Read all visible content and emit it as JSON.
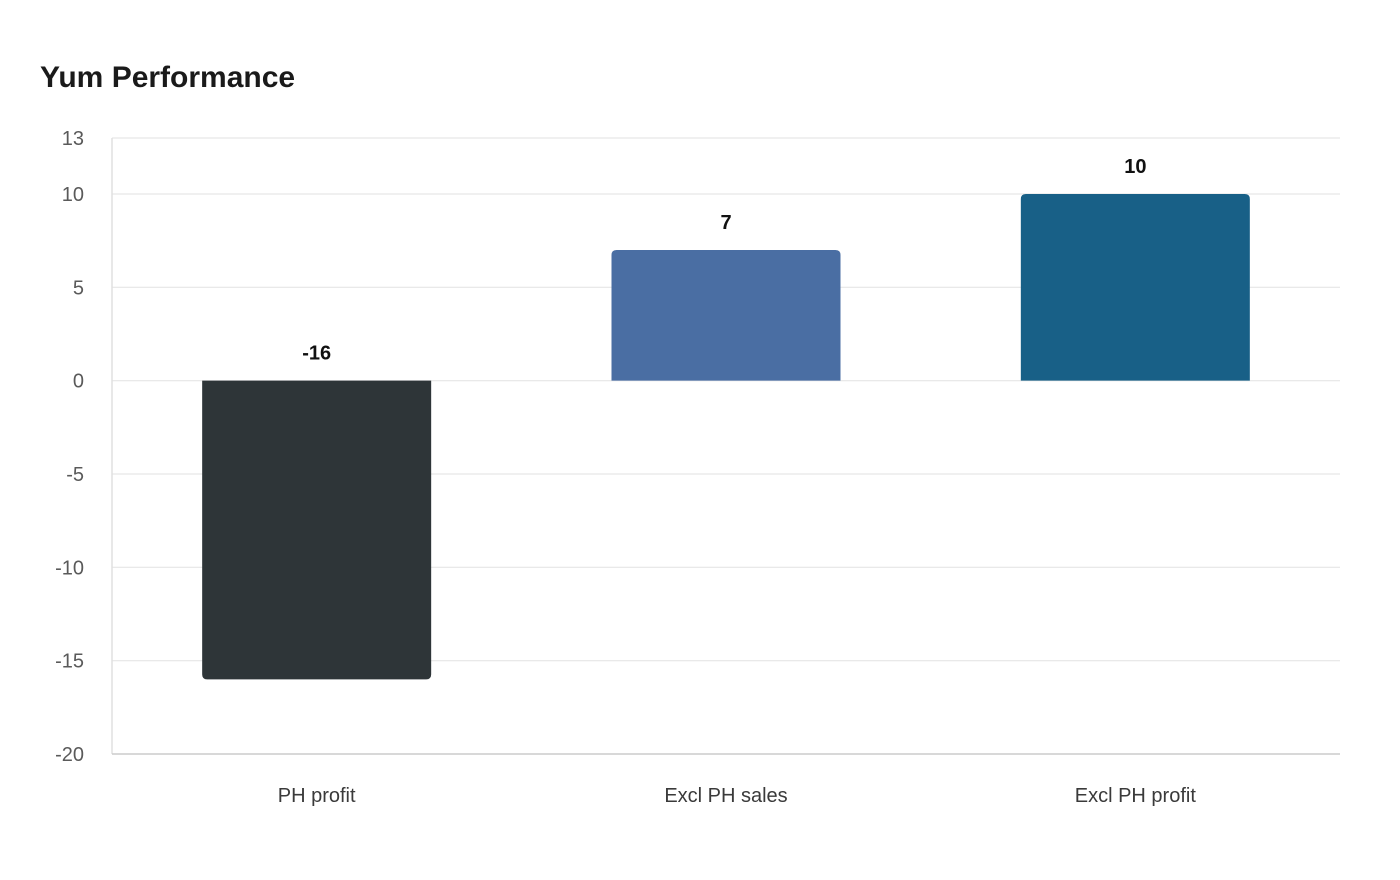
{
  "chart_data": {
    "type": "bar",
    "title": "Yum Performance",
    "xlabel": "",
    "ylabel": "",
    "categories": [
      "PH profit",
      "Excl PH sales",
      "Excl PH profit"
    ],
    "values": [
      -16,
      7,
      10
    ],
    "data_labels": [
      "-16",
      "7",
      "10"
    ],
    "colors": [
      "#2e3538",
      "#4a6ea3",
      "#186087"
    ],
    "ylim": [
      -20,
      13
    ],
    "yticks": [
      -20,
      -15,
      -10,
      -5,
      0,
      5,
      10,
      13
    ],
    "grid": true,
    "legend": "none"
  }
}
